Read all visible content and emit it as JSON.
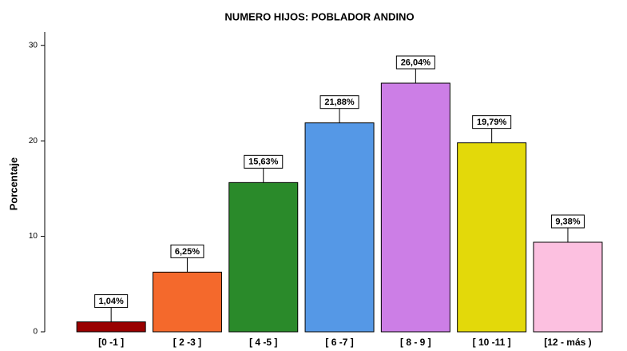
{
  "chart_data": {
    "type": "bar",
    "title": "NUMERO HIJOS: POBLADOR ANDINO",
    "ylabel": "Porcentaje",
    "categories": [
      "[0 -1 ]",
      "[ 2 -3 ]",
      "[ 4 -5 ]",
      "[ 6 -7 ]",
      "[ 8 - 9 ]",
      "[ 10 -11 ]",
      "[12 - más )"
    ],
    "values": [
      1.04,
      6.25,
      15.63,
      21.88,
      26.04,
      19.79,
      9.38
    ],
    "value_labels": [
      "1,04%",
      "6,25%",
      "15,63%",
      "21,88%",
      "26,04%",
      "19,79%",
      "9,38%"
    ],
    "colors": [
      "#990000",
      "#f4692c",
      "#2a8a2a",
      "#5598e6",
      "#cc7ee6",
      "#e3d90a",
      "#fcc0e0"
    ],
    "ylim": [
      0,
      31.4
    ],
    "yticks": [
      0,
      10,
      20,
      30
    ],
    "grid": false
  }
}
